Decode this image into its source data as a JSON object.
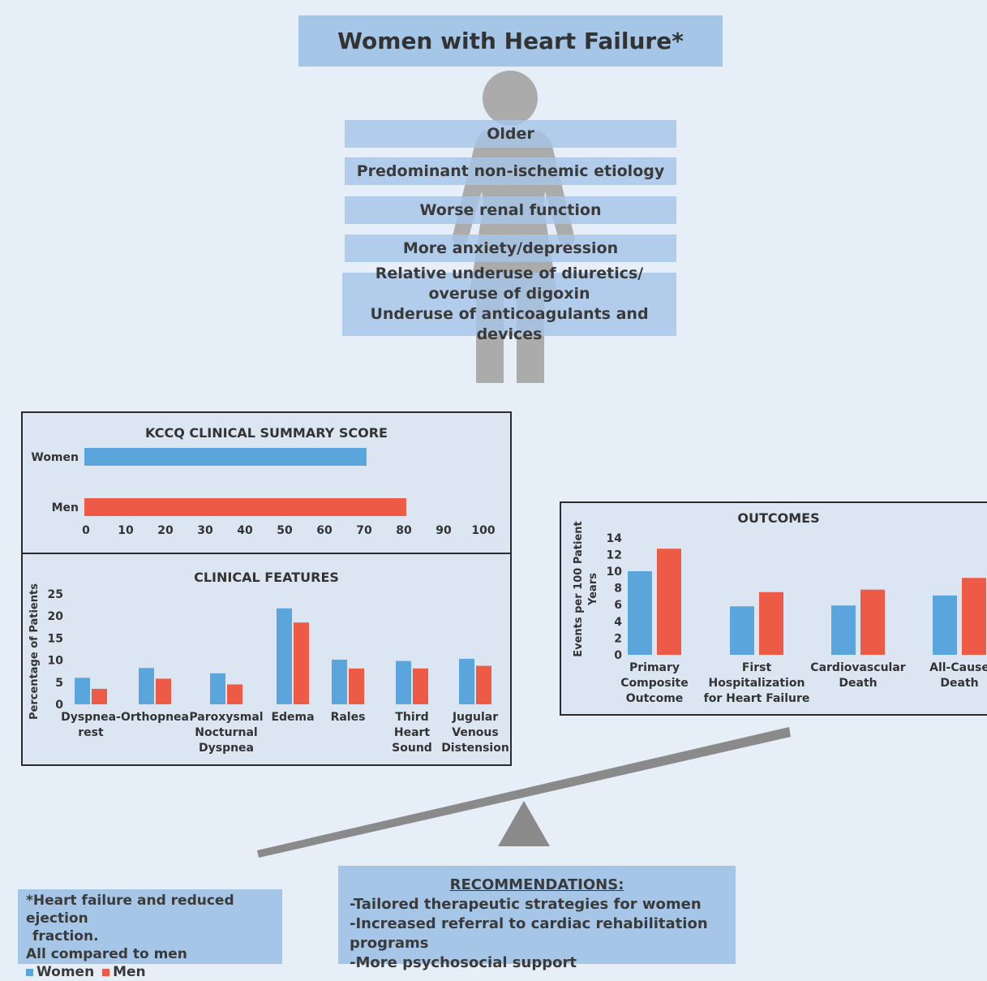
{
  "header": {
    "title": "Women with Heart Failure*"
  },
  "characteristics": [
    "Older",
    "Predominant non-ischemic etiology",
    "Worse renal function",
    "More anxiety/depression"
  ],
  "treatment_box": {
    "line1": "Relative underuse of diuretics/",
    "line2": "overuse of digoxin",
    "line3": "Underuse of anticoagulants and devices"
  },
  "colors": {
    "women": "#5aa5dc",
    "men": "#ed5a45",
    "figure": "#ababab",
    "panel": "#dce6f3",
    "boxes": "#a6c6e8"
  },
  "chart_data": [
    {
      "type": "bar",
      "orientation": "horizontal",
      "title": "KCCQ CLINICAL SUMMARY SCORE",
      "categories": [
        "Women",
        "Men"
      ],
      "values": [
        71,
        81
      ],
      "xlim": [
        0,
        100
      ],
      "xticks": [
        "0",
        "10",
        "20",
        "30",
        "40",
        "50",
        "60",
        "70",
        "80",
        "90",
        "100"
      ]
    },
    {
      "type": "bar",
      "title": "CLINICAL FEATURES",
      "ylabel": "Percentage of Patients",
      "ylim": [
        0,
        25
      ],
      "yticks": [
        "0",
        "5",
        "10",
        "15",
        "20",
        "25"
      ],
      "categories": [
        [
          "Dyspnea-",
          "rest"
        ],
        [
          "Orthopnea"
        ],
        [
          "Paroxysmal",
          "Nocturnal",
          "Dyspnea"
        ],
        [
          "Edema"
        ],
        [
          "Rales"
        ],
        [
          "Third",
          "Heart",
          "Sound"
        ],
        [
          "Jugular",
          "Venous",
          "Distension"
        ]
      ],
      "series": [
        {
          "name": "Women",
          "values": [
            6.0,
            8.2,
            7.0,
            21.7,
            10.1,
            9.8,
            10.3
          ]
        },
        {
          "name": "Men",
          "values": [
            3.5,
            5.8,
            4.5,
            18.5,
            8.1,
            8.1,
            8.7
          ]
        }
      ]
    },
    {
      "type": "bar",
      "title": "OUTCOMES",
      "ylabel": [
        "Events per 100 Patient",
        "Years"
      ],
      "ylim": [
        0,
        14
      ],
      "yticks": [
        "0",
        "2",
        "4",
        "6",
        "8",
        "10",
        "12",
        "14"
      ],
      "categories": [
        [
          "Primary",
          "Composite",
          "Outcome"
        ],
        [
          "First",
          "Hospitalization",
          "for Heart Failure"
        ],
        [
          "Cardiovascular",
          "Death"
        ],
        [
          "All-Cause",
          "Death"
        ]
      ],
      "series": [
        {
          "name": "Women",
          "values": [
            10.0,
            5.8,
            5.9,
            7.1
          ]
        },
        {
          "name": "Men",
          "values": [
            12.7,
            7.5,
            7.8,
            9.2
          ]
        }
      ]
    }
  ],
  "footnote": {
    "line1": "*Heart failure and reduced ejection",
    "line2": "fraction.",
    "line3": "All compared to men",
    "legend_women": "Women",
    "legend_men": "Men"
  },
  "recommendations": {
    "title": "RECOMMENDATIONS:",
    "items": [
      "-Tailored therapeutic strategies for women",
      "-Increased referral to cardiac rehabilitation programs",
      "-More psychosocial support"
    ]
  }
}
